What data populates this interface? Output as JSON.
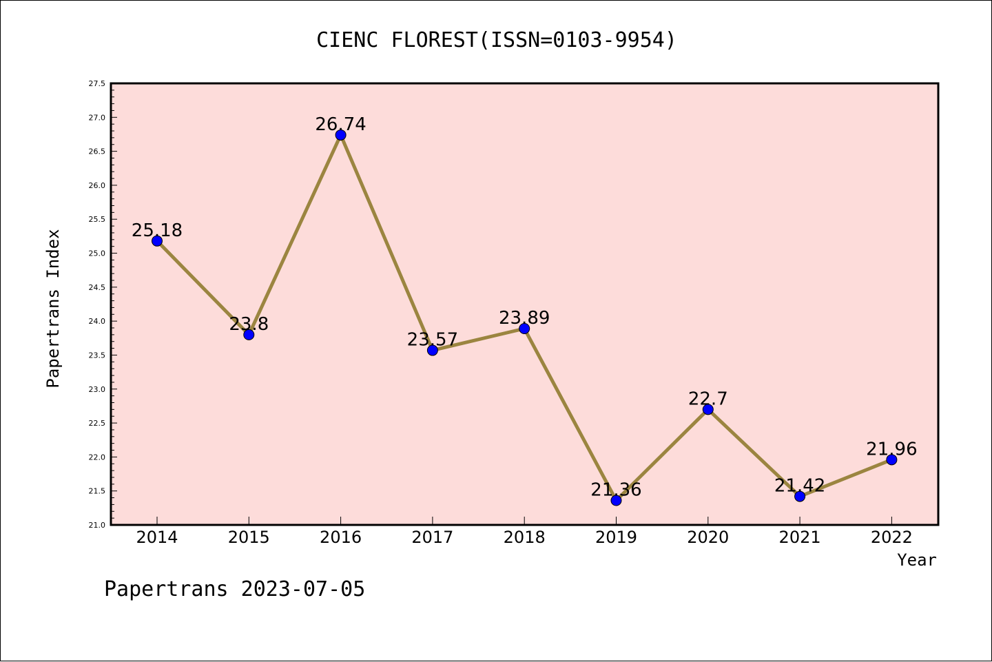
{
  "chart_data": {
    "type": "line",
    "title": "CIENC FLOREST(ISSN=0103-9954)",
    "xlabel": "Year",
    "ylabel": "Papertrans Index",
    "categories": [
      "2014",
      "2015",
      "2016",
      "2017",
      "2018",
      "2019",
      "2020",
      "2021",
      "2022"
    ],
    "series": [
      {
        "values": [
          25.18,
          23.8,
          26.74,
          23.57,
          23.89,
          21.36,
          22.7,
          21.42,
          21.96
        ],
        "labels": [
          "25.18",
          "23.8",
          "26.74",
          "23.57",
          "23.89",
          "21.36",
          "22.7",
          "21.42",
          "21.96"
        ],
        "line_color": "#9b8540",
        "marker_color": "#0000ff"
      }
    ],
    "ylim": [
      21.0,
      27.5
    ],
    "yticks": [
      "21.0",
      "21.5",
      "22.0",
      "22.5",
      "23.0",
      "23.5",
      "24.0",
      "24.5",
      "25.0",
      "25.5",
      "26.0",
      "26.5",
      "27.0",
      "27.5"
    ],
    "plot_background": "#fddcda",
    "grid": false,
    "legend": "none"
  },
  "footer": {
    "text": "Papertrans 2023-07-05"
  }
}
